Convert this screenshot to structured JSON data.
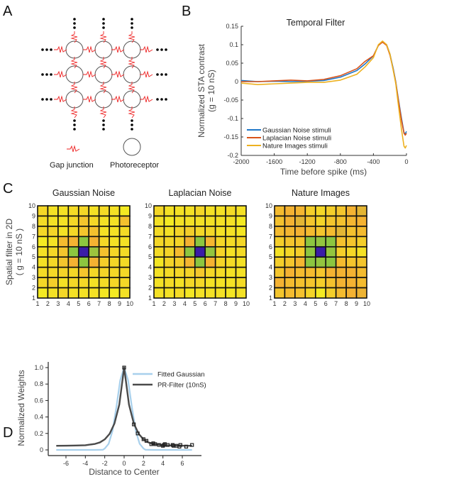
{
  "panel_labels": [
    "A",
    "B",
    "C",
    "D"
  ],
  "panel_a": {
    "legend": {
      "gap_junction": "Gap junction",
      "photoreceptor": "Photoreceptor"
    },
    "colors": {
      "gap_junction": "#ee2222",
      "photoreceptor": "#555555",
      "dots": "#000000"
    }
  },
  "chart_data": [
    {
      "type": "line",
      "title": "Temporal Filter",
      "xlabel": "Time before spike (ms)",
      "ylabel": [
        "Normalized STA contrast",
        "(g = 10 nS)"
      ],
      "xlim": [
        -2000,
        0
      ],
      "ylim": [
        -0.2,
        0.15
      ],
      "xticks": [
        -2000,
        -1600,
        -1200,
        -800,
        -400,
        0
      ],
      "yticks": [
        0.15,
        0.1,
        0.05,
        0,
        -0.05,
        -0.1,
        -0.15,
        -0.2
      ],
      "legend_position": "bottom-left",
      "series": [
        {
          "name": "Gaussian Noise stimuli",
          "color": "#1f77c8",
          "x": [
            -2000,
            -1800,
            -1600,
            -1400,
            -1200,
            -1000,
            -800,
            -600,
            -500,
            -400,
            -340,
            -290,
            -240,
            -200,
            -160,
            -130,
            -100,
            -60,
            -30,
            -15,
            0
          ],
          "y": [
            0.003,
            0.0,
            0.001,
            0.0,
            0.001,
            0.003,
            0.012,
            0.03,
            0.048,
            0.07,
            0.098,
            0.108,
            0.1,
            0.075,
            0.035,
            0.0,
            -0.045,
            -0.1,
            -0.138,
            -0.142,
            -0.135
          ]
        },
        {
          "name": "Laplacian Noise stimuli",
          "color": "#d95319",
          "x": [
            -2000,
            -1800,
            -1600,
            -1400,
            -1200,
            -1000,
            -800,
            -600,
            -500,
            -400,
            -340,
            -290,
            -240,
            -200,
            -160,
            -130,
            -100,
            -60,
            -30,
            -15,
            0
          ],
          "y": [
            0.0,
            0.0,
            0.002,
            0.004,
            0.002,
            0.006,
            0.016,
            0.035,
            0.055,
            0.07,
            0.098,
            0.107,
            0.098,
            0.072,
            0.032,
            -0.002,
            -0.048,
            -0.105,
            -0.14,
            -0.145,
            -0.14
          ]
        },
        {
          "name": "Nature Images stimuli",
          "color": "#edb120",
          "x": [
            -2000,
            -1800,
            -1600,
            -1400,
            -1200,
            -1000,
            -800,
            -600,
            -500,
            -400,
            -340,
            -290,
            -240,
            -200,
            -160,
            -130,
            -100,
            -60,
            -30,
            -15,
            0
          ],
          "y": [
            -0.004,
            -0.008,
            -0.006,
            -0.004,
            -0.002,
            -0.002,
            0.004,
            0.02,
            0.04,
            0.065,
            0.1,
            0.11,
            0.1,
            0.075,
            0.03,
            -0.005,
            -0.06,
            -0.13,
            -0.175,
            -0.18,
            -0.173
          ]
        }
      ]
    },
    {
      "type": "heatmap",
      "title": "Gaussian Noise",
      "ylabel": [
        "Spatial filter in 2D",
        "( g = 10 nS )"
      ],
      "xticks": [
        1,
        2,
        3,
        4,
        5,
        6,
        7,
        8,
        9,
        10
      ],
      "yticks": [
        1,
        2,
        3,
        4,
        5,
        6,
        7,
        8,
        9,
        10
      ],
      "colormap": [
        "#f4ea22",
        "#f4b232",
        "#8cc640",
        "#3a1ca8"
      ],
      "values_top_to_bottom": [
        [
          0.1,
          0.05,
          0.05,
          0.08,
          0.1,
          0.05,
          0.08,
          0.05,
          0.0
        ],
        [
          0.08,
          0.05,
          0.05,
          0.1,
          0.2,
          0.1,
          0.05,
          0.05,
          0.22
        ],
        [
          0.1,
          0.12,
          0.05,
          0.1,
          0.2,
          0.22,
          0.05,
          0.05,
          0.08
        ],
        [
          0.0,
          0.05,
          0.25,
          0.3,
          0.6,
          0.3,
          0.1,
          0.05,
          0.05
        ],
        [
          0.05,
          0.1,
          0.2,
          0.6,
          1.0,
          0.55,
          0.22,
          0.1,
          0.08
        ],
        [
          0.05,
          0.1,
          0.2,
          0.3,
          0.6,
          0.3,
          0.15,
          0.1,
          0.08
        ],
        [
          0.08,
          0.1,
          0.12,
          0.1,
          0.2,
          0.1,
          0.12,
          0.1,
          0.1
        ],
        [
          0.1,
          0.15,
          0.05,
          0.1,
          0.1,
          0.05,
          0.08,
          0.1,
          0.1
        ],
        [
          0.0,
          0.05,
          0.1,
          0.05,
          0.05,
          0.05,
          0.02,
          0.0,
          0.05
        ]
      ]
    },
    {
      "type": "heatmap",
      "title": "Laplacian Noise",
      "xticks": [
        1,
        2,
        3,
        4,
        5,
        6,
        7,
        8,
        9,
        10
      ],
      "yticks": [
        1,
        2,
        3,
        4,
        5,
        6,
        7,
        8,
        9,
        10
      ],
      "colormap": [
        "#f4ea22",
        "#f4b232",
        "#8cc640",
        "#3a1ca8"
      ],
      "values_top_to_bottom": [
        [
          0.1,
          0.05,
          0.05,
          0.05,
          0.1,
          0.05,
          0.05,
          0.08,
          0.05
        ],
        [
          0.05,
          0.0,
          0.05,
          0.05,
          0.05,
          0.05,
          0.05,
          0.05,
          0.0
        ],
        [
          0.08,
          0.05,
          0.12,
          0.15,
          0.1,
          0.1,
          0.05,
          0.05,
          0.02
        ],
        [
          0.1,
          0.1,
          0.12,
          0.3,
          0.6,
          0.28,
          0.1,
          0.08,
          0.1
        ],
        [
          0.08,
          0.12,
          0.25,
          0.6,
          1.0,
          0.58,
          0.12,
          0.05,
          0.08
        ],
        [
          0.02,
          0.12,
          0.15,
          0.28,
          0.6,
          0.3,
          0.12,
          0.08,
          0.05
        ],
        [
          0.05,
          0.08,
          0.1,
          0.12,
          0.18,
          0.1,
          0.08,
          0.05,
          0.05
        ],
        [
          0.05,
          0.08,
          0.05,
          0.1,
          0.1,
          0.05,
          0.05,
          0.05,
          0.08
        ],
        [
          0.05,
          0.05,
          0.08,
          0.02,
          0.05,
          0.05,
          0.05,
          0.02,
          0.05
        ]
      ]
    },
    {
      "type": "heatmap",
      "title": "Nature Images",
      "xticks": [
        1,
        2,
        3,
        4,
        5,
        6,
        7,
        8,
        9,
        10
      ],
      "yticks": [
        1,
        2,
        3,
        4,
        5,
        6,
        7,
        8,
        9,
        10
      ],
      "colormap": [
        "#f4ea22",
        "#f4b232",
        "#8cc640",
        "#3a1ca8"
      ],
      "values_top_to_bottom": [
        [
          0.25,
          0.3,
          0.28,
          0.15,
          0.1,
          0.15,
          0.2,
          0.3,
          0.35
        ],
        [
          0.22,
          0.3,
          0.35,
          0.2,
          0.12,
          0.2,
          0.22,
          0.28,
          0.3
        ],
        [
          0.25,
          0.28,
          0.3,
          0.25,
          0.2,
          0.25,
          0.35,
          0.22,
          0.25
        ],
        [
          0.15,
          0.2,
          0.2,
          0.6,
          0.58,
          0.6,
          0.22,
          0.2,
          0.15
        ],
        [
          0.05,
          0.1,
          0.15,
          0.6,
          1.0,
          0.58,
          0.15,
          0.1,
          0.05
        ],
        [
          0.15,
          0.2,
          0.28,
          0.6,
          0.58,
          0.6,
          0.25,
          0.2,
          0.2
        ],
        [
          0.2,
          0.3,
          0.25,
          0.25,
          0.2,
          0.3,
          0.3,
          0.3,
          0.25
        ],
        [
          0.3,
          0.25,
          0.22,
          0.2,
          0.15,
          0.22,
          0.3,
          0.3,
          0.25
        ],
        [
          0.2,
          0.25,
          0.22,
          0.12,
          0.0,
          0.15,
          0.25,
          0.3,
          0.32
        ]
      ]
    },
    {
      "type": "line",
      "xlabel": "Distance to Center",
      "ylabel": "Normalized Weights",
      "xlim": [
        -7.5,
        8
      ],
      "ylim": [
        -0.05,
        1.05
      ],
      "xticks": [
        -6,
        -4,
        -2,
        0,
        2,
        4,
        6
      ],
      "yticks": [
        0,
        0.2,
        0.4,
        0.6,
        0.8,
        1.0
      ],
      "legend_position": "top-right",
      "series": [
        {
          "name": "Fitted Gaussian",
          "color": "#a8d0ec",
          "x": [
            -7,
            -3,
            -2.2,
            -2,
            -1.6,
            -1.2,
            -0.8,
            -0.4,
            0,
            0.4,
            0.8,
            1.2,
            1.6,
            2,
            2.2,
            3,
            7
          ],
          "y": [
            0,
            0,
            0.002,
            0.017,
            0.074,
            0.23,
            0.52,
            0.85,
            1,
            0.85,
            0.52,
            0.23,
            0.074,
            0.017,
            0.002,
            0,
            0
          ]
        },
        {
          "name": "PR-Filter (10nS)",
          "color": "#4a4a4a",
          "x": [
            -7,
            -6,
            -5,
            -4,
            -3,
            -2.5,
            -2,
            -1.5,
            -1,
            -0.5,
            0,
            0.5,
            1,
            1.5,
            2,
            2.5,
            3,
            4,
            5,
            6,
            7
          ],
          "y": [
            0.05,
            0.051,
            0.053,
            0.057,
            0.073,
            0.091,
            0.128,
            0.195,
            0.32,
            0.55,
            1,
            0.55,
            0.32,
            0.195,
            0.128,
            0.091,
            0.073,
            0.057,
            0.053,
            0.051,
            0.05
          ],
          "points": {
            "x": [
              0,
              1,
              1.4,
              2,
              2.3,
              2.8,
              3,
              3.2,
              3.6,
              4,
              4.1,
              4.2,
              4.5,
              5,
              5.1,
              5.4,
              5.7,
              5.8,
              6.4,
              7
            ],
            "y": [
              1,
              0.31,
              0.2,
              0.13,
              0.11,
              0.07,
              0.08,
              0.07,
              0.06,
              0.05,
              0.06,
              0.07,
              0.06,
              0.06,
              0.05,
              0.05,
              0.04,
              0.06,
              0.04,
              0.06
            ]
          }
        }
      ]
    }
  ]
}
